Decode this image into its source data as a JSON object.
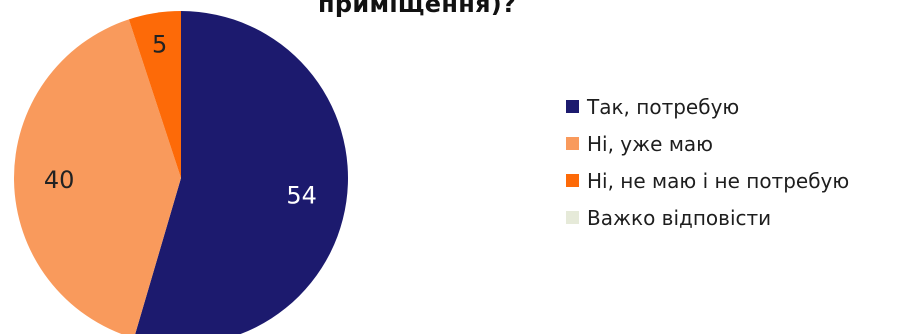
{
  "chart_data": {
    "type": "pie",
    "title": "приміщення)?",
    "categories": [
      "Так, потребую",
      "Ні, уже маю",
      "Ні, не маю і не потребую",
      "Важко відповісти"
    ],
    "values": [
      54,
      40,
      5,
      0
    ],
    "colors": [
      "#1c1a6e",
      "#f99a5c",
      "#fd6a08",
      "#e6ead9"
    ],
    "data_labels": [
      "54",
      "40",
      "5",
      ""
    ],
    "legend_position": "right",
    "start_angle": "12 o'clock, clockwise"
  }
}
